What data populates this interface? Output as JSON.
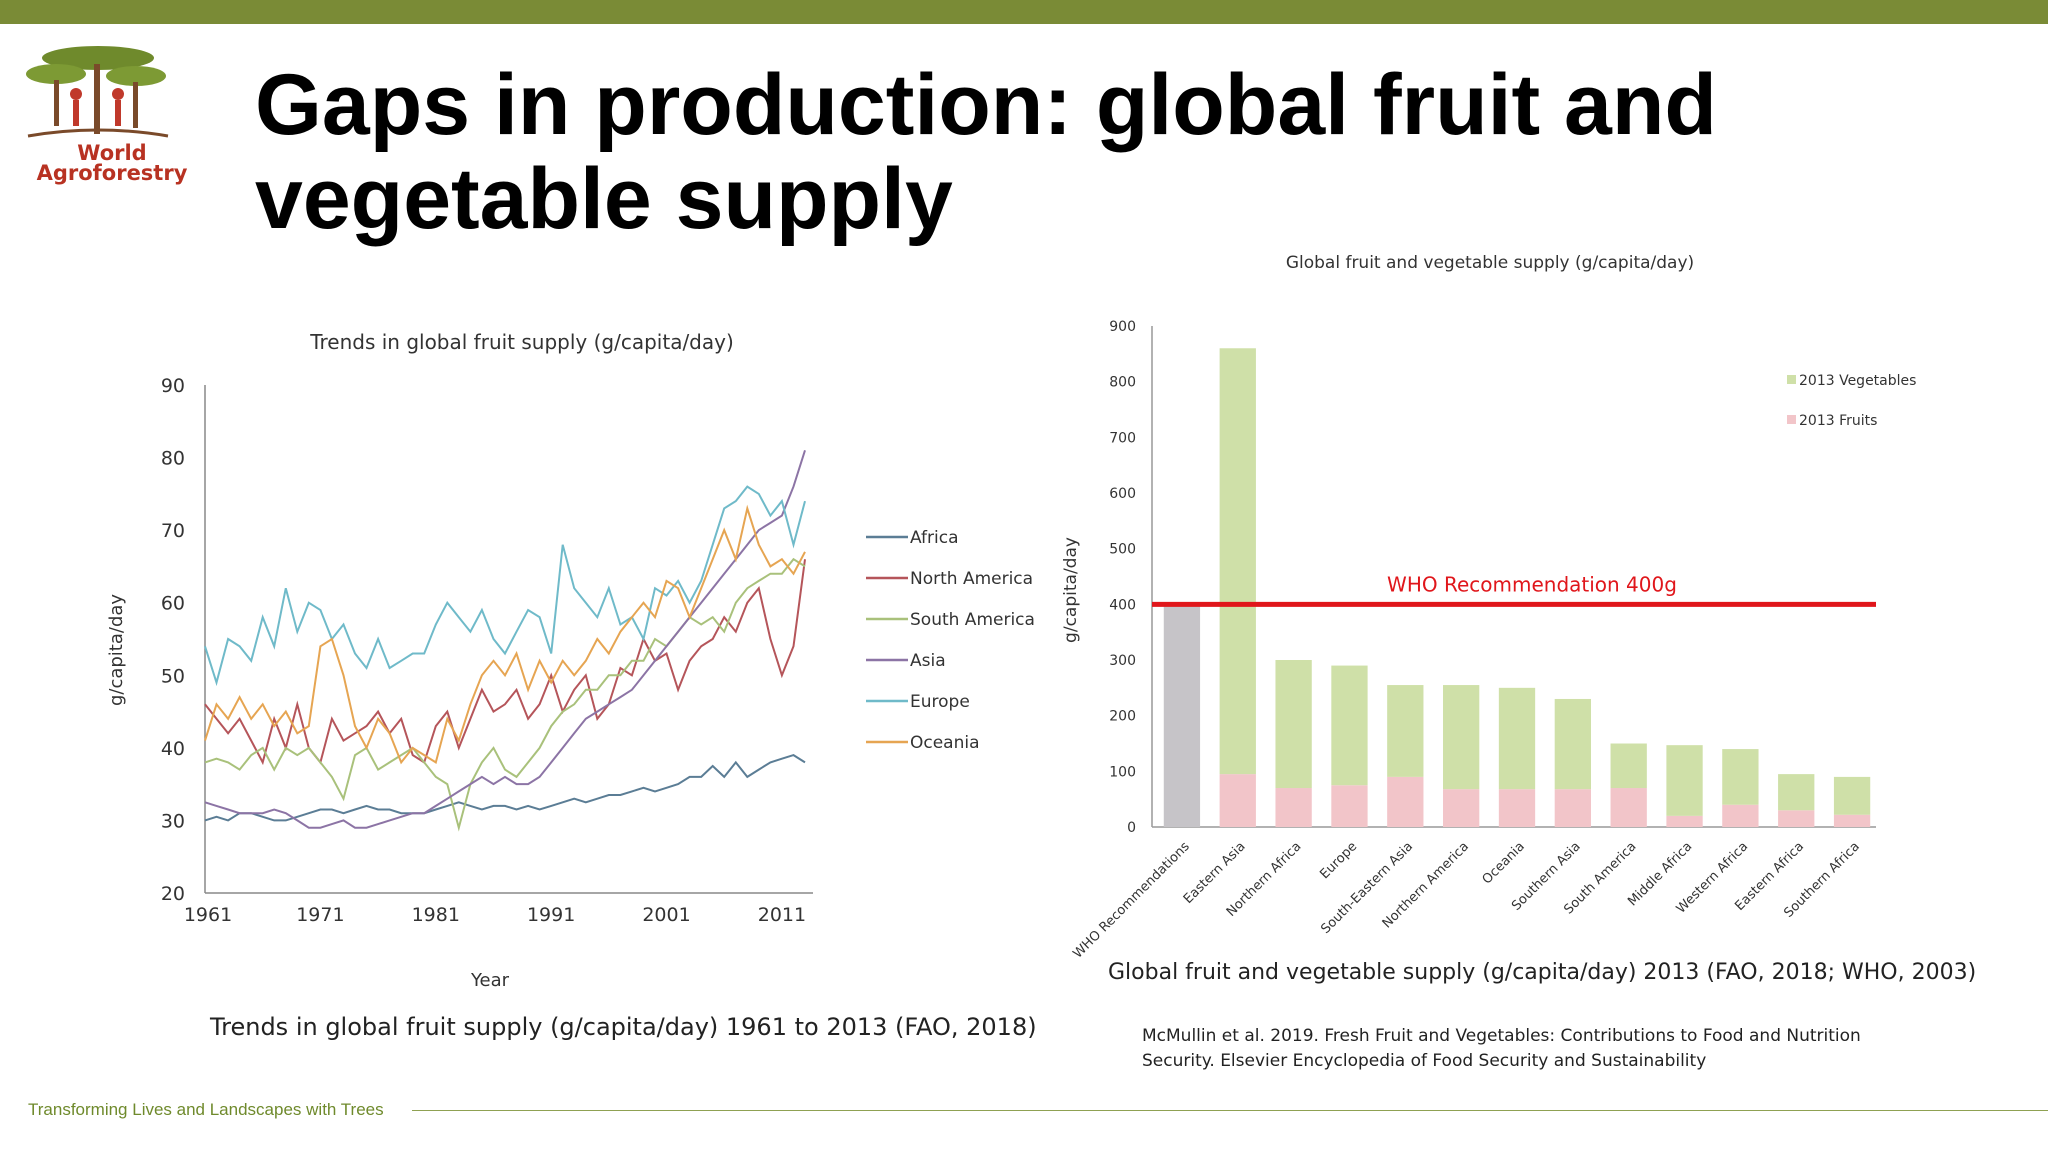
{
  "header": {
    "title_line1": "Gaps in production: global fruit and",
    "title_line2": "vegetable supply",
    "logo_line1": "World",
    "logo_line2": "Agroforestry",
    "accent": "#7a8b36"
  },
  "footer": {
    "tagline": "Transforming Lives and Landscapes with Trees"
  },
  "chart_data": [
    {
      "type": "line",
      "title": "Trends in global fruit supply (g/capita/day)",
      "xlabel": "Year",
      "ylabel": "g/capita/day",
      "caption": "Trends in global fruit supply (g/capita/day) 1961 to 2013 (FAO, 2018)",
      "xlim": [
        1961,
        2013
      ],
      "ylim": [
        20,
        90
      ],
      "xticks": [
        1961,
        1971,
        1981,
        1991,
        2001,
        2011
      ],
      "yticks": [
        20,
        30,
        40,
        50,
        60,
        70,
        80,
        90
      ],
      "grid": false,
      "legend_position": "right",
      "x": [
        1961,
        1962,
        1963,
        1964,
        1965,
        1966,
        1967,
        1968,
        1969,
        1970,
        1971,
        1972,
        1973,
        1974,
        1975,
        1976,
        1977,
        1978,
        1979,
        1980,
        1981,
        1982,
        1983,
        1984,
        1985,
        1986,
        1987,
        1988,
        1989,
        1990,
        1991,
        1992,
        1993,
        1994,
        1995,
        1996,
        1997,
        1998,
        1999,
        2000,
        2001,
        2002,
        2003,
        2004,
        2005,
        2006,
        2007,
        2008,
        2009,
        2010,
        2011,
        2012,
        2013
      ],
      "series": [
        {
          "name": "Africa",
          "color": "#5b7d95",
          "values": [
            30,
            30.5,
            30,
            31,
            31,
            30.5,
            30,
            30,
            30.5,
            31,
            31.5,
            31.5,
            31,
            31.5,
            32,
            31.5,
            31.5,
            31,
            31,
            31,
            31.5,
            32,
            32.5,
            32,
            31.5,
            32,
            32,
            31.5,
            32,
            31.5,
            32,
            32.5,
            33,
            32.5,
            33,
            33.5,
            33.5,
            34,
            34.5,
            34,
            34.5,
            35,
            36,
            36,
            37.5,
            36,
            38,
            36,
            37,
            38,
            38.5,
            39,
            38
          ]
        },
        {
          "name": "North America",
          "color": "#b5555a",
          "values": [
            46,
            44,
            42,
            44,
            41,
            38,
            44,
            40,
            46,
            40,
            38,
            44,
            41,
            42,
            43,
            45,
            42,
            44,
            39,
            38,
            43,
            45,
            40,
            44,
            48,
            45,
            46,
            48,
            44,
            46,
            50,
            45,
            48,
            50,
            44,
            46,
            51,
            50,
            55,
            52,
            53,
            48,
            52,
            54,
            55,
            58,
            56,
            60,
            62,
            55,
            50,
            54,
            66
          ]
        },
        {
          "name": "South America",
          "color": "#a9c17b",
          "values": [
            38,
            38.5,
            38,
            37,
            39,
            40,
            37,
            40,
            39,
            40,
            38,
            36,
            33,
            39,
            40,
            37,
            38,
            39,
            40,
            38,
            36,
            35,
            29,
            35,
            38,
            40,
            37,
            36,
            38,
            40,
            43,
            45,
            46,
            48,
            48,
            50,
            50,
            52,
            52,
            55,
            54,
            56,
            58,
            57,
            58,
            56,
            60,
            62,
            63,
            64,
            64,
            66,
            65
          ]
        },
        {
          "name": "Asia",
          "color": "#8c74a5",
          "values": [
            32.5,
            32,
            31.5,
            31,
            31,
            31,
            31.5,
            31,
            30,
            29,
            29,
            29.5,
            30,
            29,
            29,
            29.5,
            30,
            30.5,
            31,
            31,
            32,
            33,
            34,
            35,
            36,
            35,
            36,
            35,
            35,
            36,
            38,
            40,
            42,
            44,
            45,
            46,
            47,
            48,
            50,
            52,
            54,
            56,
            58,
            60,
            62,
            64,
            66,
            68,
            70,
            71,
            72,
            76,
            81
          ]
        },
        {
          "name": "Europe",
          "color": "#6fbac9",
          "values": [
            54,
            49,
            55,
            54,
            52,
            58,
            54,
            62,
            56,
            60,
            59,
            55,
            57,
            53,
            51,
            55,
            51,
            52,
            53,
            53,
            57,
            60,
            58,
            56,
            59,
            55,
            53,
            56,
            59,
            58,
            53,
            68,
            62,
            60,
            58,
            62,
            57,
            58,
            55,
            62,
            61,
            63,
            60,
            63,
            68,
            73,
            74,
            76,
            75,
            72,
            74,
            68,
            74
          ]
        },
        {
          "name": "Oceania",
          "color": "#e6a552",
          "values": [
            41,
            46,
            44,
            47,
            44,
            46,
            43,
            45,
            42,
            43,
            54,
            55,
            50,
            43,
            40,
            44,
            42,
            38,
            40,
            39,
            38,
            44,
            41,
            46,
            50,
            52,
            50,
            53,
            48,
            52,
            49,
            52,
            50,
            52,
            55,
            53,
            56,
            58,
            60,
            58,
            63,
            62,
            58,
            62,
            66,
            70,
            66,
            73,
            68,
            65,
            66,
            64,
            67
          ]
        }
      ]
    },
    {
      "type": "bar",
      "stacked": true,
      "title": "Global fruit and vegetable supply (g/capita/day)",
      "ylabel": "g/capita/day",
      "caption": "Global fruit and vegetable supply (g/capita/day) 2013 (FAO, 2018; WHO, 2003)",
      "source_note_line1": "McMullin et al. 2019. Fresh Fruit and Vegetables: Contributions to Food and Nutrition",
      "source_note_line2": "Security. Elsevier Encyclopedia of Food Security and Sustainability",
      "ylim": [
        0,
        900
      ],
      "yticks": [
        0,
        100,
        200,
        300,
        400,
        500,
        600,
        700,
        800,
        900
      ],
      "grid": false,
      "legend_position": "top-right",
      "categories": [
        "WHO Recommendations",
        "Eastern Asia",
        "Northern Africa",
        "Europe",
        "South-Eastern Asia",
        "Northern America",
        "Oceania",
        "Southern Asia",
        "South America",
        "Middle Africa",
        "Western Africa",
        "Eastern Africa",
        "Southern Africa"
      ],
      "recommendation_values": [
        400,
        0,
        0,
        0,
        0,
        0,
        0,
        0,
        0,
        0,
        0,
        0,
        0
      ],
      "recommendation_color": "#c6c4c8",
      "series": [
        {
          "name": "2013 Fruits",
          "color": "#f2c5c9",
          "values": [
            0,
            95,
            70,
            75,
            90,
            68,
            68,
            68,
            70,
            20,
            40,
            30,
            22
          ]
        },
        {
          "name": "2013 Vegetables",
          "color": "#cfe0a8",
          "values": [
            0,
            765,
            230,
            215,
            165,
            187,
            182,
            162,
            80,
            127,
            100,
            65,
            68
          ]
        }
      ],
      "reference_line": {
        "value": 400,
        "label": "WHO Recommendation 400g",
        "color": "#e0161b"
      }
    }
  ]
}
